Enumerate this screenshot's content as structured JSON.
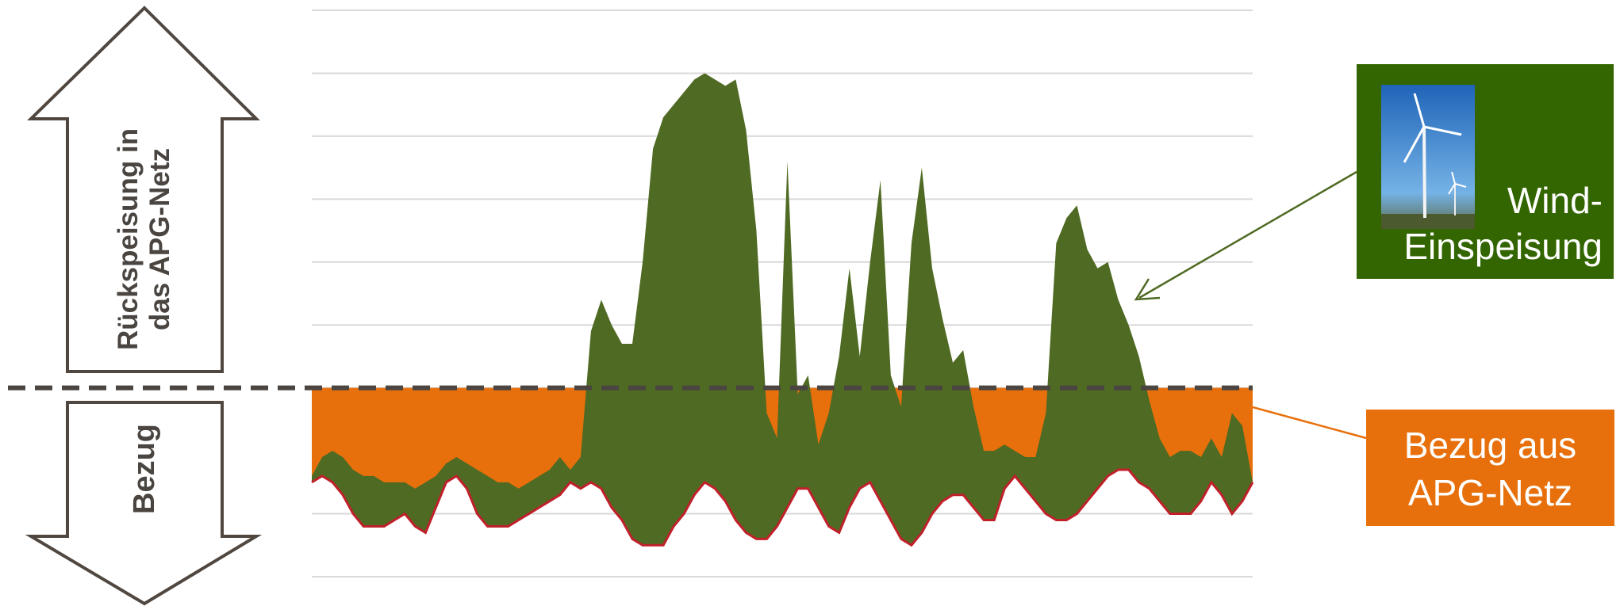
{
  "chart_data": {
    "type": "area",
    "upper_label": "Rückspeisung in das APG-Netz",
    "lower_label": "Bezug",
    "x": [
      0,
      1,
      2,
      3,
      4,
      5,
      6,
      7,
      8,
      9,
      10,
      11,
      12,
      13,
      14,
      15,
      16,
      17,
      18,
      19,
      20,
      21,
      22,
      23,
      24,
      25,
      26,
      27,
      28,
      29,
      30,
      31,
      32,
      33,
      34,
      35,
      36,
      37,
      38,
      39,
      40,
      41,
      42,
      43,
      44,
      45,
      46,
      47,
      48,
      49,
      50,
      51,
      52,
      53,
      54,
      55,
      56,
      57,
      58,
      59,
      60,
      61,
      62,
      63,
      64,
      65,
      66,
      67,
      68,
      69,
      70,
      71,
      72,
      73,
      74,
      75,
      76,
      77,
      78,
      79,
      80,
      81,
      82,
      83,
      84,
      85,
      86,
      87,
      88,
      89,
      90,
      91
    ],
    "xlim": [
      0,
      91
    ],
    "ylim": [
      -3,
      6
    ],
    "yticks": [
      -3,
      -2,
      -1,
      0,
      1,
      2,
      3,
      4,
      5,
      6
    ],
    "grid": true,
    "series": [
      {
        "name": "Wind-Einspeisung",
        "color": "#4f6a23",
        "values": [
          -1.4,
          -1.1,
          -1.0,
          -1.1,
          -1.3,
          -1.4,
          -1.4,
          -1.5,
          -1.5,
          -1.5,
          -1.6,
          -1.5,
          -1.4,
          -1.2,
          -1.1,
          -1.2,
          -1.3,
          -1.4,
          -1.5,
          -1.5,
          -1.6,
          -1.5,
          -1.4,
          -1.3,
          -1.1,
          -1.3,
          -1.1,
          0.9,
          1.4,
          1.0,
          0.7,
          0.7,
          2.0,
          3.8,
          4.3,
          4.5,
          4.7,
          4.9,
          5.0,
          4.9,
          4.8,
          4.9,
          4.1,
          2.5,
          -0.4,
          -0.8,
          3.6,
          -0.1,
          0.2,
          -0.9,
          -0.4,
          0.5,
          1.9,
          0.5,
          2.0,
          3.3,
          0.2,
          -0.3,
          2.3,
          3.5,
          1.9,
          1.1,
          0.4,
          0.6,
          -0.3,
          -1.0,
          -1.0,
          -0.9,
          -1.0,
          -1.1,
          -1.1,
          -0.4,
          2.3,
          2.7,
          2.9,
          2.2,
          1.9,
          2.0,
          1.4,
          1.0,
          0.5,
          -0.2,
          -0.8,
          -1.1,
          -1.0,
          -1.0,
          -1.1,
          -0.8,
          -1.1,
          -0.4,
          -0.6,
          -1.5
        ]
      },
      {
        "name": "Bezug aus APG-Netz",
        "color": "#e8700c",
        "line_color": "#c0202a",
        "values": [
          -1.5,
          -1.4,
          -1.5,
          -1.7,
          -2.0,
          -2.2,
          -2.2,
          -2.2,
          -2.1,
          -2.0,
          -2.2,
          -2.3,
          -1.9,
          -1.5,
          -1.4,
          -1.6,
          -2.0,
          -2.2,
          -2.2,
          -2.2,
          -2.1,
          -2.0,
          -1.9,
          -1.8,
          -1.7,
          -1.5,
          -1.6,
          -1.5,
          -1.6,
          -1.9,
          -2.1,
          -2.4,
          -2.5,
          -2.5,
          -2.5,
          -2.2,
          -2.0,
          -1.7,
          -1.5,
          -1.6,
          -1.8,
          -2.1,
          -2.3,
          -2.4,
          -2.4,
          -2.2,
          -1.9,
          -1.6,
          -1.6,
          -1.9,
          -2.2,
          -2.3,
          -1.9,
          -1.6,
          -1.5,
          -1.8,
          -2.1,
          -2.4,
          -2.5,
          -2.3,
          -2.0,
          -1.8,
          -1.7,
          -1.7,
          -1.9,
          -2.1,
          -2.1,
          -1.6,
          -1.4,
          -1.6,
          -1.8,
          -2.0,
          -2.1,
          -2.1,
          -2.0,
          -1.8,
          -1.6,
          -1.4,
          -1.3,
          -1.3,
          -1.5,
          -1.6,
          -1.8,
          -2.0,
          -2.0,
          -2.0,
          -1.8,
          -1.5,
          -1.7,
          -2.0,
          -1.8,
          -1.5
        ]
      }
    ]
  }
}
